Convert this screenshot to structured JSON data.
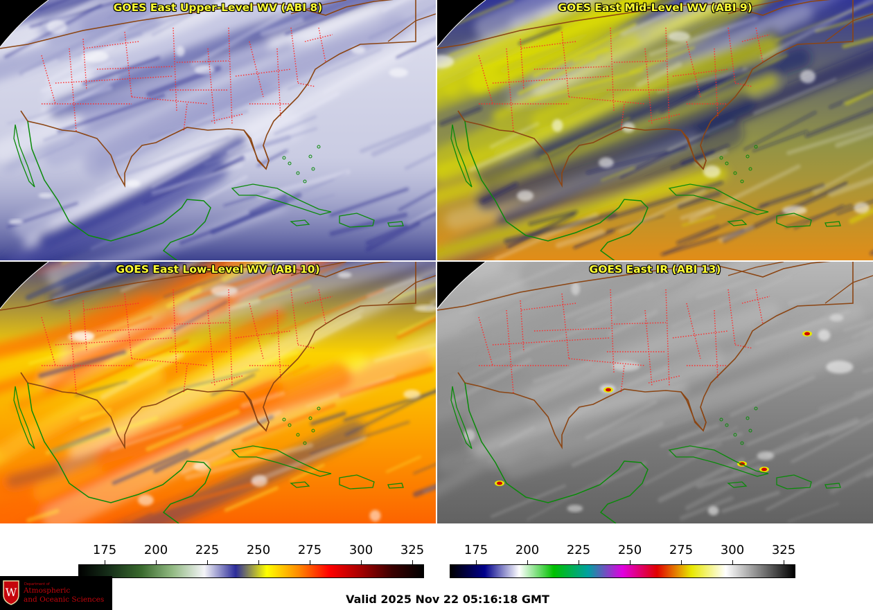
{
  "panels": [
    {
      "title": "GOES East Upper-Level WV (ABI 8)",
      "palette": "wv",
      "level": 0
    },
    {
      "title": "GOES East Mid-Level WV (ABI 9)",
      "palette": "wv",
      "level": 1
    },
    {
      "title": "GOES East Low-Level WV (ABI 10)",
      "palette": "wv",
      "level": 2
    },
    {
      "title": "GOES East IR (ABI 13)",
      "palette": "ir",
      "level": 0
    }
  ],
  "colorbars": [
    {
      "name": "water-vapor-colorbar",
      "ticks": [
        "175",
        "200",
        "225",
        "250",
        "275",
        "300",
        "325"
      ],
      "stops": [
        "#000000",
        "#17301a",
        "#3a6a2e",
        "#93bb84",
        "#f4f4f8",
        "#2c2c9a",
        "#ffff00",
        "#ff8c00",
        "#ff0000",
        "#a50000",
        "#3a0000",
        "#000000"
      ]
    },
    {
      "name": "infrared-colorbar",
      "ticks": [
        "175",
        "200",
        "225",
        "250",
        "275",
        "300",
        "325"
      ],
      "stops": [
        "#000000",
        "#00008b",
        "#ffffff",
        "#00c000",
        "#00a0a0",
        "#e000e0",
        "#e00000",
        "#e8e800",
        "#ffffff",
        "#808080",
        "#000000"
      ]
    }
  ],
  "valid_time": "Valid 2025 Nov 22 05:16:18 GMT",
  "logo": {
    "dept": "Department of",
    "line1": "Atmospheric",
    "line2": "and Oceanic Sciences",
    "crest_letter": "W"
  },
  "colors": {
    "state_borders": "#ff2a2a",
    "us_coast": "#8b4513",
    "foreign_coast": "#008000",
    "title": "#ffff33"
  }
}
